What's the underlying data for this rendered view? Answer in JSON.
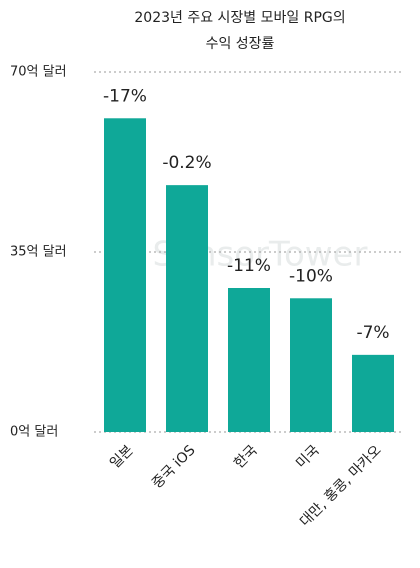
{
  "chart_data": {
    "type": "bar",
    "title": [
      "2023년 주요 시장별 모바일 RPG의",
      "수익 성장률"
    ],
    "categories": [
      "일본",
      "중국 iOS",
      "한국",
      "미국",
      "대만, 홍콩, 마카오"
    ],
    "values": [
      61,
      48,
      28,
      26,
      15
    ],
    "annotations": [
      "-17%",
      "-0.2%",
      "-11%",
      "-10%",
      "-7%"
    ],
    "color": "#0fa898",
    "ylim": [
      0,
      70
    ],
    "yticks": [
      {
        "value": 0,
        "label": "0억 달러"
      },
      {
        "value": 35,
        "label": "35억 달러"
      },
      {
        "value": 70,
        "label": "70억 달러"
      }
    ],
    "grid": true,
    "watermark": "SensorTower"
  }
}
